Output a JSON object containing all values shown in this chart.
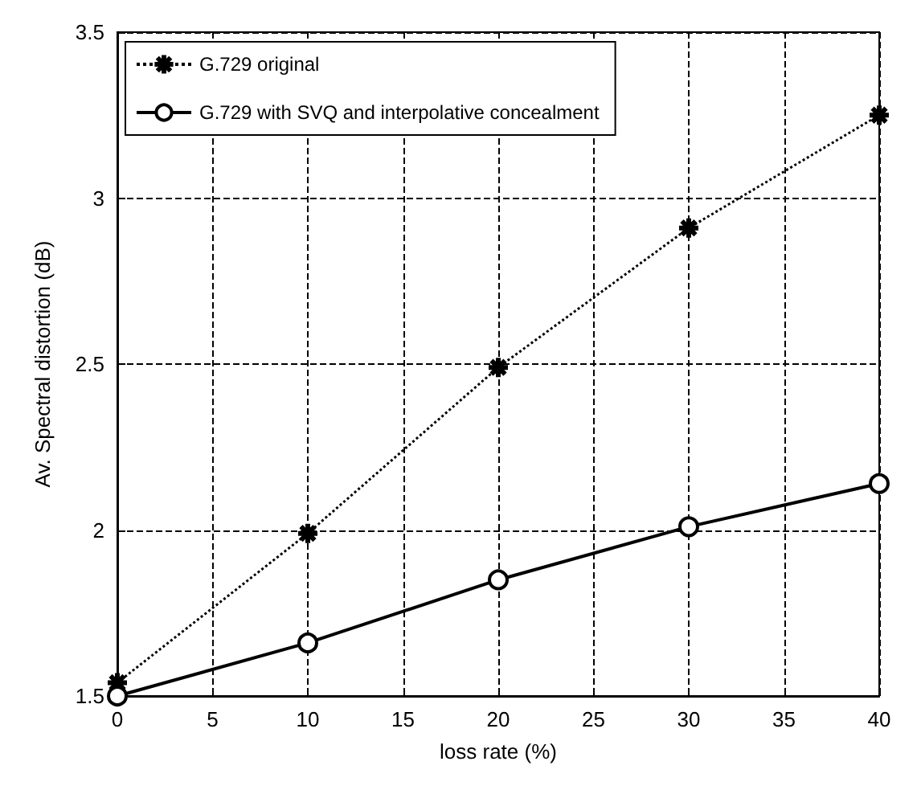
{
  "chart_data": {
    "type": "line",
    "xlabel": "loss rate (%)",
    "ylabel": "Av. Spectral distortion (dB)",
    "x": [
      0,
      10,
      20,
      30,
      40
    ],
    "series": [
      {
        "name": "G.729 original",
        "color": "#000000",
        "marker": "star",
        "line_style": "dotted",
        "values": [
          1.54,
          1.99,
          2.49,
          2.91,
          3.25
        ]
      },
      {
        "name": "G.729 with SVQ and interpolative concealment",
        "color": "#000000",
        "marker": "circle",
        "line_style": "solid",
        "values": [
          1.5,
          1.66,
          1.85,
          2.01,
          2.14
        ]
      }
    ],
    "xlim": [
      0,
      40
    ],
    "xticks": [
      0,
      5,
      10,
      15,
      20,
      25,
      30,
      35,
      40
    ],
    "ylim": [
      1.5,
      3.5
    ],
    "yticks": [
      1.5,
      2,
      2.5,
      3,
      3.5
    ],
    "grid": true,
    "legend": "top left"
  }
}
